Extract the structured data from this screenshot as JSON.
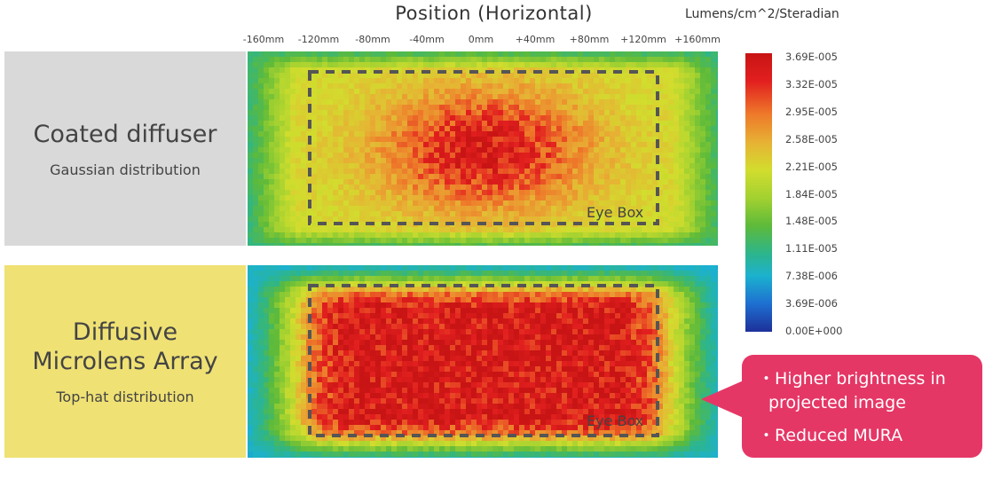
{
  "header": {
    "title": "Position (Horizontal)",
    "unit_label": "Lumens/cm^2/Steradian"
  },
  "x_ticks": [
    "-160mm",
    "-120mm",
    "-80mm",
    "-40mm",
    "0mm",
    "+40mm",
    "+80mm",
    "+120mm",
    "+160mm"
  ],
  "panels": [
    {
      "title_lines": [
        "Coated diffuser"
      ],
      "subtitle": "Gaussian distribution",
      "eyebox": "Eye Box"
    },
    {
      "title_lines": [
        "Diffusive",
        "Microlens Array"
      ],
      "subtitle": "Top-hat distribution",
      "eyebox": "Eye Box"
    }
  ],
  "colorbar": {
    "labels": [
      "3.69E-005",
      "3.32E-005",
      "2.95E-005",
      "2.58E-005",
      "2.21E-005",
      "1.84E-005",
      "1.48E-005",
      "1.11E-005",
      "7.38E-006",
      "3.69E-006",
      "0.00E+000"
    ]
  },
  "callout": {
    "lines": [
      "・Higher brightness in",
      "projected image",
      "・Reduced MURA"
    ]
  },
  "colors": {
    "coated_panel_bg": "#d9d9d9",
    "microlens_panel_bg": "#efe174",
    "callout_bg": "#e53766",
    "eyebox_dash": "#555555"
  }
}
